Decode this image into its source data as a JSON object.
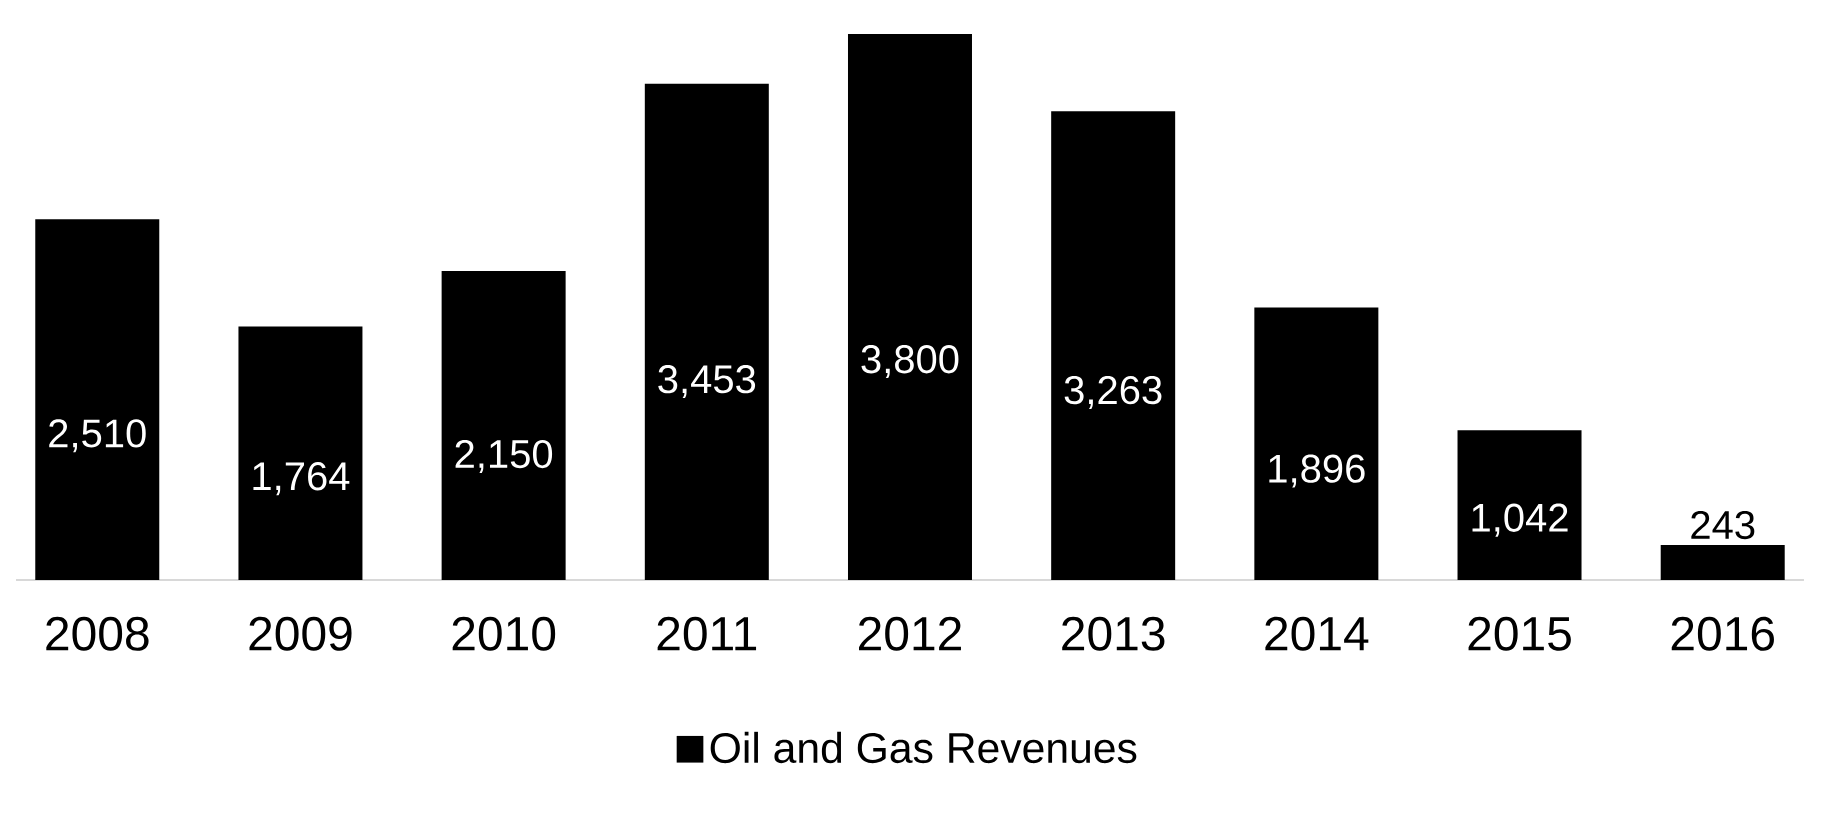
{
  "chart_data": {
    "type": "bar",
    "categories": [
      "2008",
      "2009",
      "2010",
      "2011",
      "2012",
      "2013",
      "2014",
      "2015",
      "2016"
    ],
    "series": [
      {
        "name": "Oil and Gas Revenues",
        "color": "#000000",
        "values": [
          2510,
          1764,
          2150,
          3453,
          3800,
          3263,
          1896,
          1042,
          243
        ],
        "value_labels": [
          "2,510",
          "1,764",
          "2,150",
          "3,453",
          "3,800",
          "3,263",
          "1,896",
          "1,042",
          "243"
        ]
      }
    ],
    "legend": "bottom"
  }
}
